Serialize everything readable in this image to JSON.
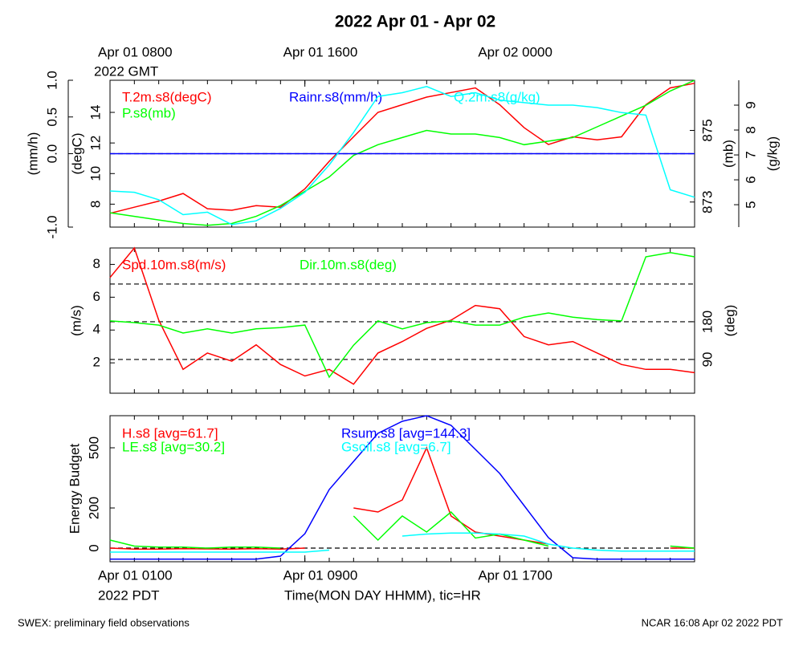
{
  "title": "2022 Apr 01 - Apr 02",
  "footer_left": "SWEX: preliminary field observations",
  "footer_right": "NCAR 16:08 Apr 02 2022 PDT",
  "minor_xticks": [
    0,
    1,
    2,
    3,
    4,
    5,
    6,
    7,
    8,
    9,
    10,
    11,
    12,
    13,
    14,
    15,
    16,
    17,
    18,
    19,
    20,
    21,
    22,
    23,
    24
  ],
  "chart_data": [
    {
      "type": "line",
      "x": [
        0,
        1,
        2,
        3,
        4,
        5,
        6,
        7,
        8,
        9,
        10,
        11,
        12,
        13,
        14,
        15,
        16,
        17,
        18,
        19,
        20,
        21,
        22,
        23,
        24
      ],
      "xlim": [
        0,
        24
      ],
      "x2ticks": [
        {
          "value": 0,
          "label": "Apr 01 0800"
        },
        {
          "value": 8,
          "label": "Apr 01 1600"
        },
        {
          "value": 16,
          "label": "Apr 02 0000"
        }
      ],
      "x2_sublabel": "2022 GMT",
      "axes": [
        {
          "label": "(mm/h)",
          "side": "left",
          "lim": [
            -1,
            1
          ],
          "ticks": [
            {
              "value": -1,
              "label": "-1.0"
            },
            {
              "value": 0,
              "label": "0.0"
            },
            {
              "value": 0.5,
              "label": "0.5"
            },
            {
              "value": 1,
              "label": "1.0"
            }
          ]
        },
        {
          "label": "(degC)",
          "side": "left",
          "lim": [
            6.5,
            16.1
          ],
          "ticks": [
            8,
            10,
            12,
            14
          ]
        },
        {
          "label": "(mb)",
          "side": "right",
          "lim": [
            872.3,
            876.4
          ],
          "ticks": [
            873,
            875
          ]
        },
        {
          "label": "(g/kg)",
          "side": "right",
          "lim": [
            4.1,
            10
          ],
          "ticks": [
            5,
            6,
            7,
            8,
            9
          ]
        }
      ],
      "ref_lines": [
        {
          "axis": 0,
          "value": 0
        }
      ],
      "series": [
        {
          "name": "T.2m.s8(degC)",
          "color": "#ff0000",
          "axis": 1,
          "values": [
            7.4,
            7.8,
            8.2,
            8.7,
            7.7,
            7.6,
            7.9,
            7.8,
            9.0,
            10.8,
            12.4,
            14.0,
            14.5,
            15.0,
            15.3,
            15.6,
            14.5,
            13.0,
            11.9,
            12.4,
            12.2,
            12.4,
            14.5,
            15.6,
            15.9
          ]
        },
        {
          "name": "P.s8(mb)",
          "color": "#00ff00",
          "axis": 2,
          "values": [
            872.7,
            872.6,
            872.5,
            872.4,
            872.35,
            872.4,
            872.6,
            872.9,
            873.3,
            873.7,
            874.3,
            874.6,
            874.8,
            875.0,
            874.9,
            874.9,
            874.8,
            874.6,
            874.7,
            874.8,
            875.1,
            875.4,
            875.7,
            876.1,
            876.4
          ]
        },
        {
          "name": "Rainr.s8(mm/h)",
          "color": "#0000ff",
          "axis": 0,
          "values": [
            0,
            0,
            0,
            0,
            0,
            0,
            0,
            0,
            0,
            0,
            0,
            0,
            0,
            0,
            0,
            0,
            0,
            0,
            0,
            0,
            0,
            0,
            0,
            0,
            0
          ]
        },
        {
          "name": "Q.2m.s8(g/kg)",
          "color": "#00ffff",
          "axis": 3,
          "values": [
            5.55,
            5.5,
            5.2,
            4.6,
            4.7,
            4.2,
            4.35,
            4.85,
            5.5,
            6.6,
            7.9,
            9.35,
            9.5,
            9.75,
            9.35,
            9.5,
            9.2,
            9.1,
            9.0,
            9.0,
            8.9,
            8.7,
            8.6,
            5.6,
            5.3
          ]
        }
      ]
    },
    {
      "type": "line",
      "x": [
        0,
        1,
        2,
        3,
        4,
        5,
        6,
        7,
        8,
        9,
        10,
        11,
        12,
        13,
        14,
        15,
        16,
        17,
        18,
        19,
        20,
        21,
        22,
        23,
        24
      ],
      "xlim": [
        0,
        24
      ],
      "axes": [
        {
          "label": "(m/s)",
          "side": "left",
          "lim": [
            0.15,
            9.0
          ],
          "ticks": [
            2,
            4,
            6,
            8
          ]
        },
        {
          "label": "(deg)",
          "side": "right",
          "lim": [
            9.5,
            356
          ],
          "ticks": [
            90,
            180
          ]
        }
      ],
      "ref_lines": [
        {
          "axis": 1,
          "value": 90
        },
        {
          "axis": 1,
          "value": 180
        },
        {
          "axis": 1,
          "value": 270
        }
      ],
      "series": [
        {
          "name": "Spd.10m.s8(m/s)",
          "color": "#ff0000",
          "axis": 0,
          "values": [
            7.2,
            9.0,
            4.6,
            1.6,
            2.6,
            2.1,
            3.1,
            1.9,
            1.2,
            1.6,
            0.7,
            2.6,
            3.3,
            4.1,
            4.6,
            5.5,
            5.3,
            3.6,
            3.1,
            3.3,
            2.6,
            1.9,
            1.6,
            1.6,
            1.4
          ]
        },
        {
          "name": "Dir.10m.s8(deg)",
          "color": "#00ff00",
          "axis": 1,
          "values": [
            182,
            178,
            172,
            153,
            163,
            153,
            163,
            166,
            172,
            48,
            124,
            182,
            163,
            178,
            182,
            172,
            172,
            191,
            201,
            191,
            185,
            182,
            335,
            345,
            335
          ]
        }
      ]
    },
    {
      "type": "line",
      "x": [
        0,
        1,
        2,
        3,
        4,
        5,
        6,
        7,
        8,
        9,
        10,
        11,
        12,
        13,
        14,
        15,
        16,
        17,
        18,
        19,
        20,
        21,
        22,
        23,
        24
      ],
      "xlim": [
        0,
        24
      ],
      "xticks": [
        {
          "value": 0,
          "label": "Apr 01 0100"
        },
        {
          "value": 8,
          "label": "Apr 01 0900"
        },
        {
          "value": 16,
          "label": "Apr 01 1700"
        }
      ],
      "x_sublabel": "2022 PDT",
      "xlabel": "Time(MON DAY HHMM), tic=HR",
      "axes": [
        {
          "label": "Energy Budget",
          "side": "left",
          "lim": [
            -68,
            660
          ],
          "ticks": [
            0,
            200,
            500
          ]
        }
      ],
      "ref_lines": [
        {
          "axis": 0,
          "value": 0
        }
      ],
      "series": [
        {
          "name": "H.s8 [avg=61.7]",
          "color": "#ff0000",
          "axis": 0,
          "values": [
            0,
            -5,
            -5,
            -3,
            -4,
            -5,
            -3,
            -5,
            0,
            null,
            200,
            180,
            240,
            500,
            160,
            80,
            60,
            40,
            20,
            null,
            null,
            null,
            null,
            0,
            0
          ]
        },
        {
          "name": "LE.s8 [avg=30.2]",
          "color": "#00ff00",
          "axis": 0,
          "values": [
            40,
            10,
            5,
            5,
            0,
            5,
            5,
            0,
            null,
            null,
            160,
            40,
            160,
            80,
            180,
            50,
            70,
            40,
            10,
            null,
            null,
            null,
            null,
            10,
            0
          ]
        },
        {
          "name": "Rsum.s8 [avg=144.3]",
          "color": "#0000ff",
          "axis": 0,
          "values": [
            -55,
            -55,
            -55,
            -55,
            -55,
            -55,
            -55,
            -40,
            72,
            292,
            432,
            572,
            632,
            660,
            612,
            492,
            372,
            212,
            52,
            -48,
            -55,
            -55,
            -55,
            -55,
            -55
          ]
        },
        {
          "name": "Gsoil.s8 [avg=6.7]",
          "color": "#00ffff",
          "axis": 0,
          "values": [
            -20,
            -20,
            -20,
            -20,
            -20,
            -20,
            -20,
            -20,
            -20,
            -10,
            null,
            null,
            60,
            70,
            75,
            75,
            70,
            60,
            20,
            0,
            -10,
            -15,
            -15,
            -15,
            -15
          ]
        }
      ]
    }
  ]
}
